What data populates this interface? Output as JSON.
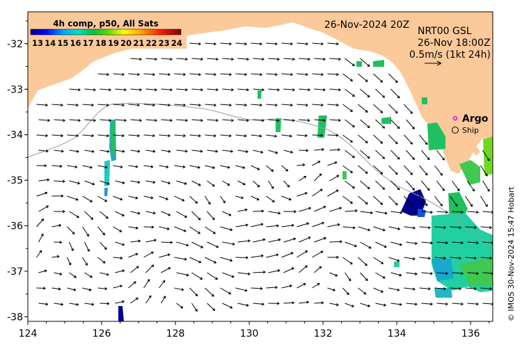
{
  "title_date": "26-Nov-2024 20Z",
  "colorbar": {
    "title": "4h comp, p50, All Sats",
    "ticks": [
      "13",
      "14",
      "15",
      "16",
      "17",
      "18",
      "19",
      "20",
      "21",
      "22",
      "23",
      "24"
    ],
    "min": 13,
    "max": 24
  },
  "product": {
    "line1": "NRT00 GSL",
    "line2": "26-Nov 18:00Z",
    "line3": "0.5m/s (1kt 24h)"
  },
  "legend": {
    "argo_label": "Argo",
    "ship_label": "Ship",
    "argo_color": "#e000e0"
  },
  "credit": "© IMOS 30-Nov-2024 15:47 Hobart",
  "axes": {
    "lon_range": [
      124,
      136.6
    ],
    "lat_range": [
      -38.1,
      -31.3
    ],
    "x_ticks": [
      "124",
      "126",
      "128",
      "130",
      "132",
      "134",
      "136"
    ],
    "y_ticks": [
      "-32",
      "-33",
      "-34",
      "-35",
      "-36",
      "-37",
      "-38"
    ]
  },
  "colors": {
    "land": "#fcc99a",
    "ocean": "#ffffff",
    "shelf_contour": "#999999"
  }
}
